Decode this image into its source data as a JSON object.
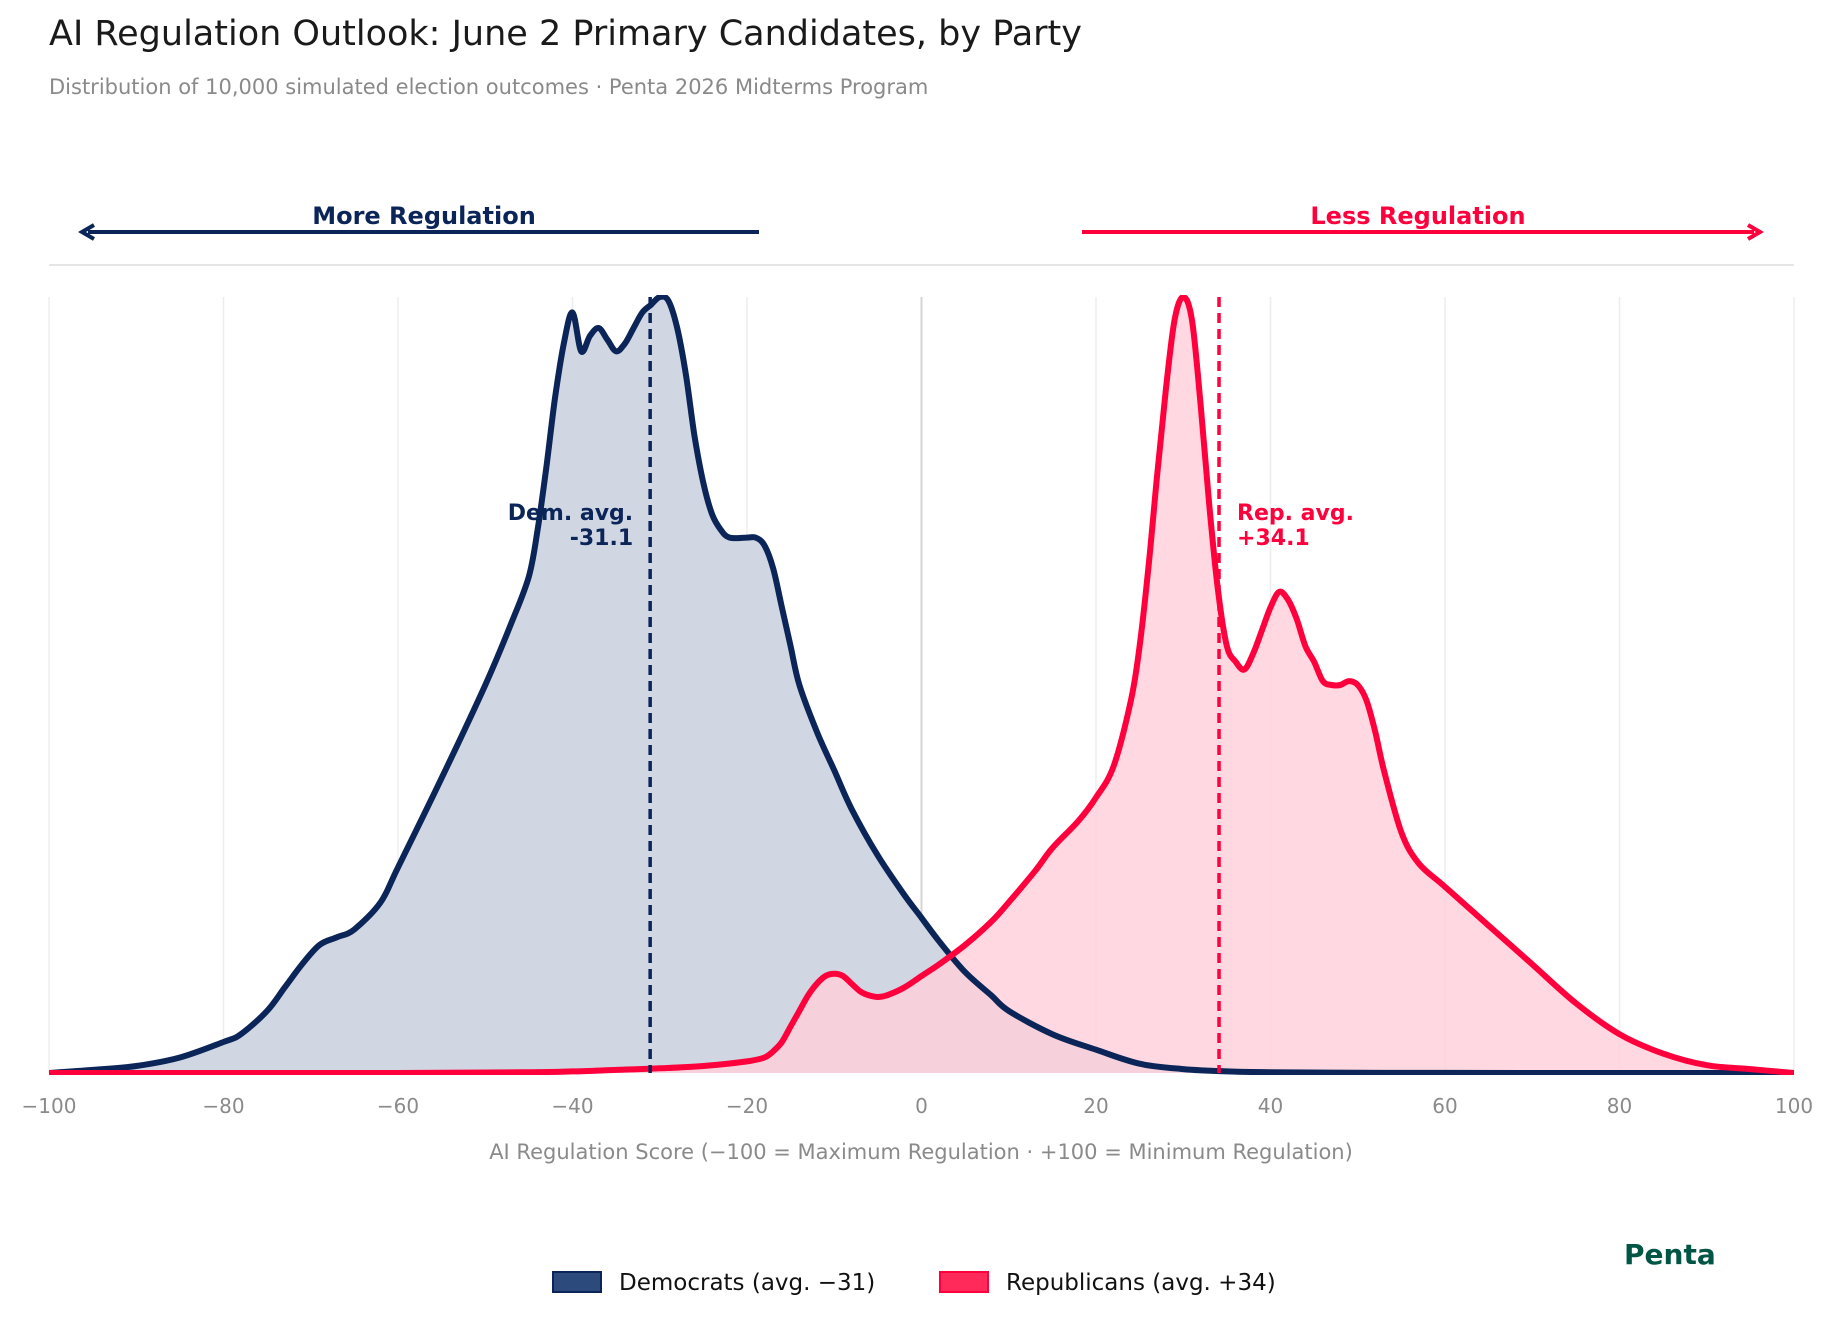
{
  "chart_data": {
    "type": "area",
    "title": "AI Regulation Outlook: June 2 Primary Candidates, by Party",
    "subtitle": "Distribution of 10,000 simulated election outcomes  ·  Penta 2026 Midterms Program",
    "xlabel": "AI Regulation Score  (−100 = Maximum Regulation  ·  +100 = Minimum Regulation)",
    "ylabel": "",
    "xlim": [
      -100,
      100
    ],
    "ylim": [
      0,
      1
    ],
    "x_ticks": [
      -100,
      -80,
      -60,
      -40,
      -20,
      0,
      20,
      40,
      60,
      80,
      100
    ],
    "x_tick_labels": [
      "−100",
      "−80",
      "−60",
      "−40",
      "−20",
      "0",
      "20",
      "40",
      "60",
      "80",
      "100"
    ],
    "grid": "vertical",
    "legend_position": "bottom-center",
    "series": [
      {
        "name": "Democrats  (avg. −31)",
        "color": "#0b2559",
        "fill": "#d0d7e2",
        "legend_color": "#2c4a7c",
        "mean_value": -31.1,
        "mean_label": "Dem. avg.",
        "mean_value_label": "-31.1",
        "points": [
          [
            -100,
            0.0
          ],
          [
            -95,
            0.004
          ],
          [
            -90,
            0.009
          ],
          [
            -85,
            0.02
          ],
          [
            -80,
            0.04
          ],
          [
            -78,
            0.05
          ],
          [
            -75,
            0.08
          ],
          [
            -73,
            0.11
          ],
          [
            -71,
            0.14
          ],
          [
            -69,
            0.165
          ],
          [
            -67,
            0.175
          ],
          [
            -65,
            0.185
          ],
          [
            -62,
            0.22
          ],
          [
            -60,
            0.265
          ],
          [
            -55,
            0.38
          ],
          [
            -50,
            0.5
          ],
          [
            -47,
            0.58
          ],
          [
            -45,
            0.64
          ],
          [
            -44,
            0.7
          ],
          [
            -43,
            0.78
          ],
          [
            -42,
            0.87
          ],
          [
            -41,
            0.94
          ],
          [
            -40,
            0.98
          ],
          [
            -39,
            0.93
          ],
          [
            -38,
            0.95
          ],
          [
            -37,
            0.96
          ],
          [
            -36,
            0.945
          ],
          [
            -35,
            0.93
          ],
          [
            -34,
            0.94
          ],
          [
            -33,
            0.96
          ],
          [
            -32,
            0.98
          ],
          [
            -31,
            0.99
          ],
          [
            -30,
            1.0
          ],
          [
            -29,
            0.995
          ],
          [
            -28,
            0.96
          ],
          [
            -27,
            0.9
          ],
          [
            -26,
            0.82
          ],
          [
            -25,
            0.76
          ],
          [
            -24,
            0.72
          ],
          [
            -23,
            0.7
          ],
          [
            -22,
            0.69
          ],
          [
            -20,
            0.69
          ],
          [
            -19,
            0.69
          ],
          [
            -18,
            0.68
          ],
          [
            -17,
            0.65
          ],
          [
            -16,
            0.6
          ],
          [
            -15,
            0.55
          ],
          [
            -14,
            0.5
          ],
          [
            -12,
            0.44
          ],
          [
            -10,
            0.39
          ],
          [
            -8,
            0.34
          ],
          [
            -5,
            0.28
          ],
          [
            -2,
            0.23
          ],
          [
            0,
            0.2
          ],
          [
            2,
            0.17
          ],
          [
            5,
            0.13
          ],
          [
            8,
            0.1
          ],
          [
            10,
            0.08
          ],
          [
            15,
            0.05
          ],
          [
            20,
            0.03
          ],
          [
            25,
            0.012
          ],
          [
            30,
            0.005
          ],
          [
            35,
            0.002
          ],
          [
            40,
            0.001
          ],
          [
            50,
            0.0003
          ],
          [
            60,
            0.0001
          ],
          [
            80,
            0.0
          ],
          [
            100,
            0.0
          ]
        ]
      },
      {
        "name": "Republicans  (avg. +34)",
        "color": "#ff003d",
        "fill": "#ffced9",
        "legend_color": "#ff2a5a",
        "mean_value": 34.1,
        "mean_label": "Rep. avg.",
        "mean_value_label": "+34.1",
        "points": [
          [
            -100,
            0.0
          ],
          [
            -60,
            0.0
          ],
          [
            -45,
            0.001
          ],
          [
            -40,
            0.002
          ],
          [
            -35,
            0.004
          ],
          [
            -30,
            0.006
          ],
          [
            -25,
            0.009
          ],
          [
            -20,
            0.015
          ],
          [
            -18,
            0.02
          ],
          [
            -17,
            0.028
          ],
          [
            -16,
            0.04
          ],
          [
            -15,
            0.06
          ],
          [
            -14,
            0.08
          ],
          [
            -13,
            0.1
          ],
          [
            -12,
            0.115
          ],
          [
            -11,
            0.125
          ],
          [
            -10,
            0.128
          ],
          [
            -9,
            0.125
          ],
          [
            -8,
            0.115
          ],
          [
            -7,
            0.105
          ],
          [
            -6,
            0.1
          ],
          [
            -5,
            0.098
          ],
          [
            -4,
            0.1
          ],
          [
            -2,
            0.11
          ],
          [
            0,
            0.125
          ],
          [
            2,
            0.14
          ],
          [
            5,
            0.165
          ],
          [
            8,
            0.195
          ],
          [
            10,
            0.22
          ],
          [
            13,
            0.26
          ],
          [
            15,
            0.29
          ],
          [
            18,
            0.325
          ],
          [
            20,
            0.355
          ],
          [
            22,
            0.395
          ],
          [
            24,
            0.48
          ],
          [
            25,
            0.55
          ],
          [
            26,
            0.65
          ],
          [
            27,
            0.77
          ],
          [
            28,
            0.88
          ],
          [
            29,
            0.97
          ],
          [
            30,
            1.0
          ],
          [
            31,
            0.97
          ],
          [
            32,
            0.86
          ],
          [
            33,
            0.73
          ],
          [
            34,
            0.62
          ],
          [
            35,
            0.55
          ],
          [
            36,
            0.53
          ],
          [
            37,
            0.52
          ],
          [
            38,
            0.54
          ],
          [
            39,
            0.57
          ],
          [
            40,
            0.6
          ],
          [
            41,
            0.62
          ],
          [
            42,
            0.61
          ],
          [
            43,
            0.585
          ],
          [
            44,
            0.55
          ],
          [
            45,
            0.53
          ],
          [
            46,
            0.505
          ],
          [
            47,
            0.5
          ],
          [
            48,
            0.5
          ],
          [
            49,
            0.505
          ],
          [
            50,
            0.5
          ],
          [
            51,
            0.48
          ],
          [
            52,
            0.44
          ],
          [
            53,
            0.39
          ],
          [
            55,
            0.31
          ],
          [
            57,
            0.27
          ],
          [
            60,
            0.24
          ],
          [
            65,
            0.19
          ],
          [
            70,
            0.14
          ],
          [
            75,
            0.09
          ],
          [
            80,
            0.05
          ],
          [
            85,
            0.025
          ],
          [
            90,
            0.01
          ],
          [
            95,
            0.005
          ],
          [
            100,
            0.0
          ]
        ]
      }
    ],
    "direction_labels": {
      "left": {
        "text": "More Regulation",
        "color": "#0b2559"
      },
      "right": {
        "text": "Less Regulation",
        "color": "#ff003d"
      }
    },
    "brand": {
      "text": "Penta",
      "color": "#005545"
    }
  }
}
